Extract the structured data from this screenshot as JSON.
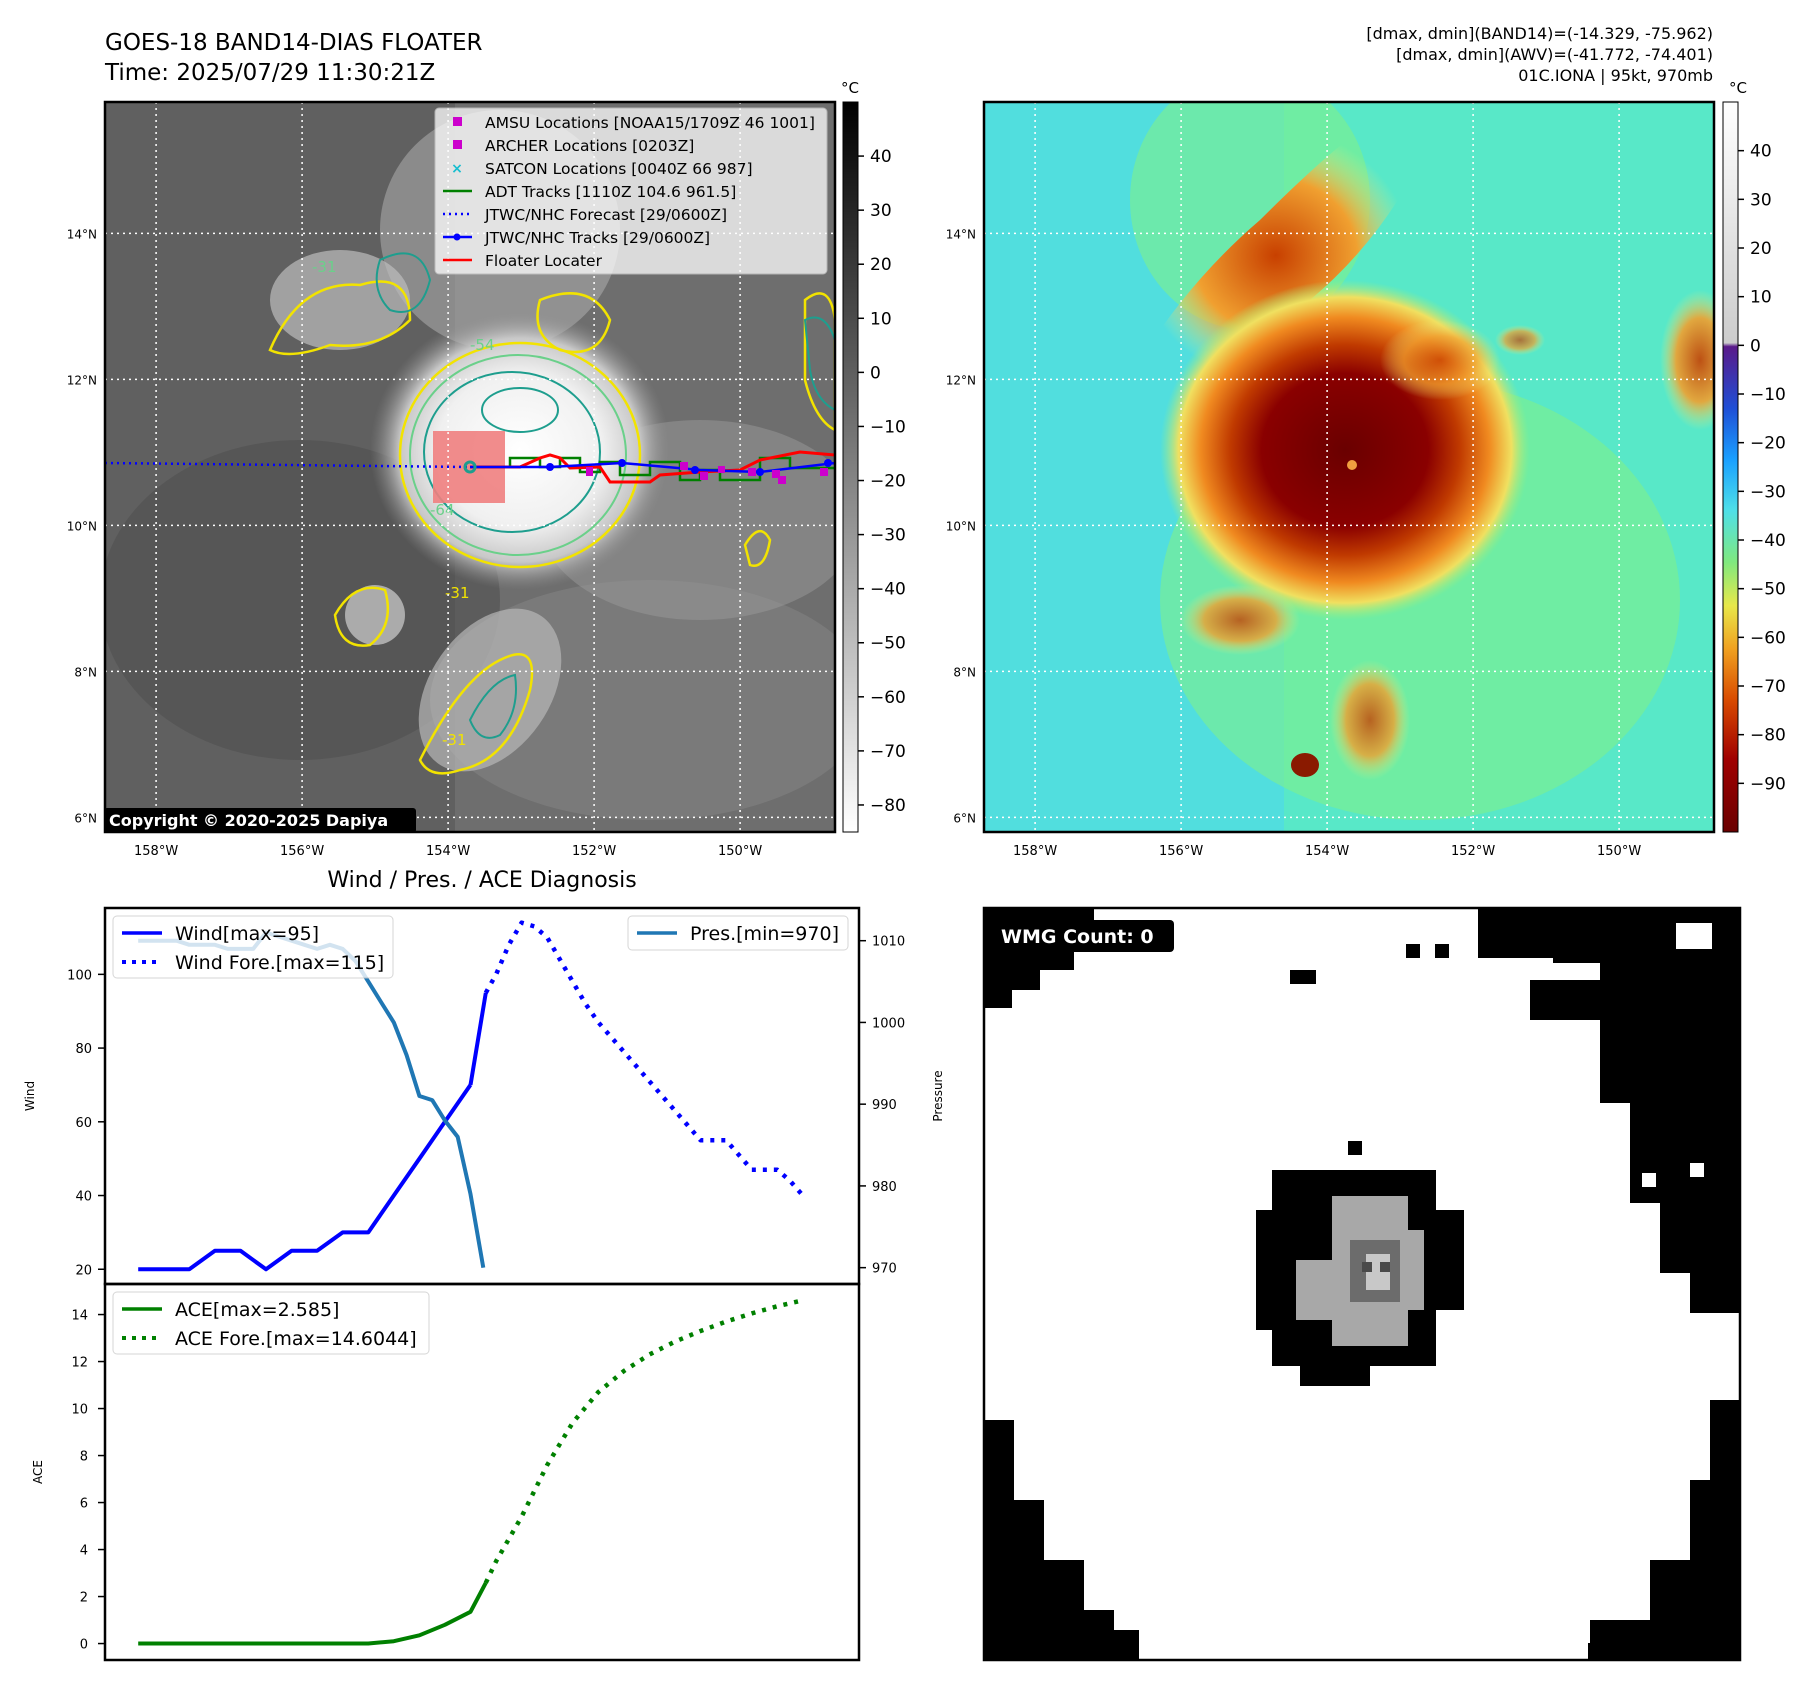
{
  "header": {
    "title_line1": "GOES-18 BAND14-DIAS FLOATER",
    "title_line2": "Time: 2025/07/29 11:30:21Z",
    "stats_line1": "[dmax, dmin](BAND14)=(-14.329, -75.962)",
    "stats_line2": "[dmax, dmin](AWV)=(-41.772, -74.401)",
    "stats_line3": "01C.IONA | 95kt, 970mb"
  },
  "map_axes": {
    "lat_labels": [
      "14°N",
      "12°N",
      "10°N",
      "8°N",
      "6°N"
    ],
    "lat_values": [
      14,
      12,
      10,
      8,
      6
    ],
    "lon_labels": [
      "158°W",
      "156°W",
      "154°W",
      "152°W",
      "150°W"
    ],
    "lon_values": [
      -158,
      -156,
      -154,
      -152,
      -150
    ],
    "lat_range": [
      5.8,
      15.8
    ],
    "lon_range": [
      -158.7,
      -148.7
    ]
  },
  "left_map": {
    "copyright": "Copyright © 2020-2025 Dapiya",
    "colorbar_unit": "°C",
    "colorbar_ticks": [
      "40",
      "30",
      "20",
      "10",
      "0",
      "−10",
      "−20",
      "−30",
      "−40",
      "−50",
      "−60",
      "−70",
      "−80"
    ],
    "colorbar_values": [
      40,
      30,
      20,
      10,
      0,
      -10,
      -20,
      -30,
      -40,
      -50,
      -60,
      -70,
      -80
    ],
    "colorbar_range": [
      -85,
      50
    ],
    "contour_labels": [
      "-31",
      "-54",
      "-64",
      "-31",
      "-31"
    ],
    "legend": [
      {
        "label": "AMSU Locations [NOAA15/1709Z 46 1001]",
        "marker": "square",
        "color": "#cc00cc"
      },
      {
        "label": "ARCHER Locations [0203Z]",
        "marker": "square",
        "color": "#cc00cc"
      },
      {
        "label": "SATCON Locations [0040Z 66 987]",
        "marker": "x",
        "color": "#17becf"
      },
      {
        "label": "ADT Tracks [1110Z 104.6 961.5]",
        "marker": "line",
        "color": "#008000"
      },
      {
        "label": "JTWC/NHC Forecast [29/0600Z]",
        "marker": "dotted",
        "color": "#0000ff"
      },
      {
        "label": "JTWC/NHC Tracks [29/0600Z]",
        "marker": "line-dot",
        "color": "#0000ff"
      },
      {
        "label": "Floater Locater",
        "marker": "line",
        "color": "#ff0000"
      }
    ]
  },
  "right_map": {
    "colorbar_unit": "°C",
    "colorbar_ticks": [
      "40",
      "30",
      "20",
      "10",
      "0",
      "−10",
      "−20",
      "−30",
      "−40",
      "−50",
      "−60",
      "−70",
      "−80",
      "−90"
    ],
    "colorbar_values": [
      40,
      30,
      20,
      10,
      0,
      -10,
      -20,
      -30,
      -40,
      -50,
      -60,
      -70,
      -80,
      -90
    ],
    "colorbar_range": [
      -100,
      50
    ],
    "colors": {
      "cold_core": "#7a0000",
      "warm_bg": "#58e8c8"
    }
  },
  "wind_panel": {
    "title": "Wind / Pres. / ACE Diagnosis",
    "ylabel": "Wind",
    "y2label": "Pressure",
    "yticks": [
      "100",
      "80",
      "60",
      "40",
      "20"
    ],
    "yvalues": [
      100,
      80,
      60,
      40,
      20
    ],
    "y2ticks": [
      "1010",
      "1000",
      "990",
      "980",
      "970"
    ],
    "y2values": [
      1010,
      1000,
      990,
      980,
      970
    ],
    "legend_left": [
      {
        "label": "Wind[max=95]",
        "style": "solid",
        "color": "#0000ff"
      },
      {
        "label": "Wind Fore.[max=115]",
        "style": "dotted",
        "color": "#0000ff"
      }
    ],
    "legend_right": [
      {
        "label": "Pres.[min=970]",
        "style": "solid",
        "color": "#1f77b4"
      }
    ]
  },
  "ace_panel": {
    "ylabel": "ACE",
    "yticks": [
      "14",
      "12",
      "10",
      "8",
      "6",
      "4",
      "2",
      "0"
    ],
    "yvalues": [
      14,
      12,
      10,
      8,
      6,
      4,
      2,
      0
    ],
    "legend": [
      {
        "label": "ACE[max=2.585]",
        "style": "solid",
        "color": "#008000"
      },
      {
        "label": "ACE Fore.[max=14.6044]",
        "style": "dotted",
        "color": "#008000"
      }
    ]
  },
  "wmg_panel": {
    "label": "WMG Count: 0"
  },
  "chart_data": [
    {
      "type": "line",
      "title": "Wind / Pres. / ACE Diagnosis",
      "ylabel": "Wind",
      "y2label": "Pressure",
      "ylim": [
        16,
        118
      ],
      "y2lim": [
        968,
        1014
      ],
      "x": [
        0,
        1,
        2,
        3,
        4,
        5,
        6,
        7,
        8,
        9,
        10,
        11,
        12,
        13,
        14,
        15,
        16,
        17,
        18,
        19,
        20,
        21,
        22,
        23,
        24,
        25,
        26
      ],
      "series": [
        {
          "name": "Wind[max=95]",
          "axis": "left",
          "style": "solid",
          "color": "#0000ff",
          "x": [
            0,
            1,
            2,
            3,
            4,
            5,
            6,
            7,
            8,
            9,
            10,
            11,
            12,
            13
          ],
          "values": [
            20,
            20,
            20,
            25,
            25,
            20,
            25,
            25,
            30,
            30,
            40,
            50,
            60,
            70
          ]
        },
        {
          "name": "Wind[max=95]",
          "axis": "left",
          "style": "solid",
          "color": "#0000ff",
          "x": [
            13,
            13.6
          ],
          "values": [
            70,
            95
          ]
        },
        {
          "name": "Wind Fore.[max=115]",
          "axis": "left",
          "style": "dotted",
          "color": "#0000ff",
          "x": [
            13.6,
            14,
            14.5,
            15,
            15.5,
            16,
            16.5,
            17,
            17.5,
            18,
            18.5,
            19,
            19.5,
            20,
            20.5,
            21,
            21.5,
            22,
            22.5,
            23,
            23.5,
            24,
            24.5,
            25,
            25.5,
            26
          ],
          "values": [
            95,
            100,
            108,
            114,
            113,
            110,
            104,
            98,
            92,
            87,
            83,
            79,
            75,
            71,
            67,
            63,
            59,
            55,
            55,
            55,
            51,
            47,
            47,
            47,
            44,
            40
          ]
        },
        {
          "name": "Pres.[min=970]",
          "axis": "right",
          "style": "solid",
          "color": "#1f77b4",
          "x": [
            0,
            0.5,
            1,
            1.5,
            2,
            2.5,
            3,
            3.5,
            4,
            4.5,
            5,
            5.5,
            6,
            6.5,
            7,
            7.5,
            8,
            8.5,
            9,
            9.5,
            10,
            10.5,
            11,
            11.5,
            12,
            12.5,
            13,
            13.5
          ],
          "values": [
            1010,
            1010,
            1010,
            1010,
            1009.5,
            1009.5,
            1009.5,
            1009,
            1009,
            1009,
            1011,
            1010.5,
            1010,
            1009.5,
            1009,
            1009.5,
            1009,
            1007.5,
            1005,
            1002.5,
            1000,
            996,
            991,
            990.5,
            988,
            986,
            979,
            970
          ]
        }
      ]
    },
    {
      "type": "line",
      "ylabel": "ACE",
      "ylim": [
        -0.7,
        15.3
      ],
      "x": [
        0,
        1,
        2,
        3,
        4,
        5,
        6,
        7,
        8,
        9,
        10,
        11,
        12,
        13,
        14,
        15,
        16,
        17,
        18,
        19,
        20,
        21,
        22,
        23,
        24,
        25,
        26
      ],
      "series": [
        {
          "name": "ACE[max=2.585]",
          "style": "solid",
          "color": "#008000",
          "x": [
            0,
            1,
            2,
            3,
            4,
            5,
            6,
            7,
            8,
            9,
            10,
            11,
            12,
            13,
            13.6
          ],
          "values": [
            0,
            0,
            0,
            0,
            0,
            0,
            0,
            0,
            0,
            0,
            0.1,
            0.35,
            0.8,
            1.35,
            2.585
          ]
        },
        {
          "name": "ACE Fore.[max=14.6044]",
          "style": "dotted",
          "color": "#008000",
          "x": [
            13.6,
            14,
            15,
            16,
            17,
            18,
            19,
            20,
            21,
            22,
            23,
            24,
            25,
            26
          ],
          "values": [
            2.585,
            3.5,
            5.4,
            7.6,
            9.4,
            10.7,
            11.6,
            12.3,
            12.85,
            13.3,
            13.7,
            14.05,
            14.35,
            14.6044
          ]
        }
      ]
    }
  ]
}
